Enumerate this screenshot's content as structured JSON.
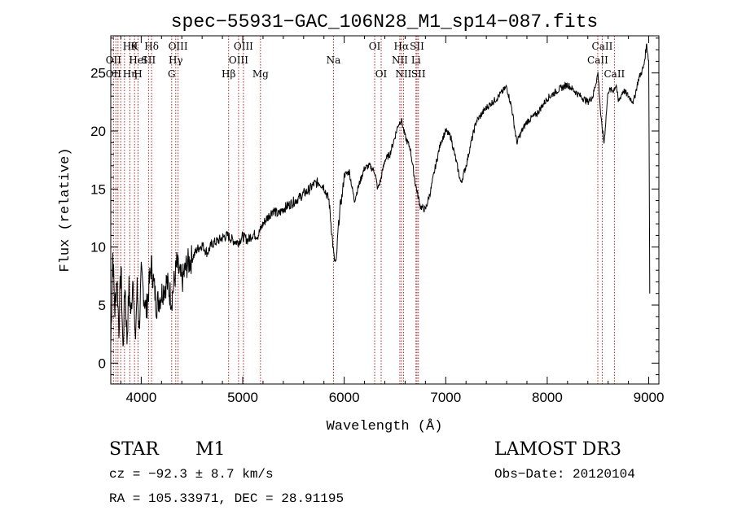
{
  "chart_data": {
    "type": "line",
    "title": "spec−55931−GAC_106N28_M1_sp14−087.fits",
    "xlabel": "Wavelength (Å)",
    "ylabel": "Flux (relative)",
    "xlim": [
      3700,
      9100
    ],
    "ylim": [
      -1.8,
      28.2
    ],
    "xticks": [
      4000,
      5000,
      6000,
      7000,
      8000,
      9000
    ],
    "yticks": [
      0,
      5,
      10,
      15,
      20,
      25
    ],
    "grid": false,
    "spectrum_color": "#000000",
    "line_marker_color": "#b22222",
    "series": [
      {
        "name": "flux",
        "x": [
          3700,
          3720,
          3740,
          3760,
          3780,
          3800,
          3820,
          3840,
          3860,
          3880,
          3900,
          3920,
          3940,
          3960,
          3980,
          4000,
          4050,
          4100,
          4150,
          4200,
          4250,
          4300,
          4350,
          4400,
          4450,
          4500,
          4550,
          4600,
          4650,
          4700,
          4750,
          4800,
          4850,
          4900,
          4950,
          5000,
          5050,
          5100,
          5150,
          5200,
          5250,
          5300,
          5350,
          5400,
          5450,
          5500,
          5550,
          5600,
          5650,
          5700,
          5750,
          5800,
          5850,
          5880,
          5900,
          5920,
          5940,
          5960,
          5980,
          6000,
          6050,
          6100,
          6150,
          6200,
          6250,
          6300,
          6330,
          6360,
          6400,
          6450,
          6500,
          6530,
          6563,
          6600,
          6650,
          6700,
          6750,
          6800,
          6850,
          6900,
          6950,
          7000,
          7050,
          7100,
          7150,
          7200,
          7250,
          7300,
          7400,
          7500,
          7600,
          7650,
          7700,
          7750,
          7800,
          7900,
          8000,
          8100,
          8200,
          8300,
          8400,
          8450,
          8500,
          8530,
          8560,
          8600,
          8650,
          8680,
          8700,
          8750,
          8800,
          8850,
          8900,
          8950,
          8980,
          9000,
          9010
        ],
        "values": [
          1.5,
          9.5,
          4.5,
          7.5,
          3.0,
          8.5,
          1.0,
          7.0,
          2.0,
          6.5,
          4.0,
          8.0,
          1.5,
          6.5,
          3.0,
          7.5,
          4.5,
          8.5,
          5.0,
          6.0,
          7.0,
          5.5,
          8.5,
          7.0,
          8.5,
          9.0,
          9.8,
          10.2,
          9.5,
          10.3,
          10.5,
          10.8,
          11.0,
          10.6,
          10.4,
          10.9,
          10.6,
          11.1,
          11.0,
          12.0,
          12.6,
          13.2,
          12.8,
          13.3,
          13.6,
          13.9,
          14.2,
          14.6,
          14.9,
          15.4,
          15.6,
          15.2,
          14.0,
          11.0,
          9.0,
          8.5,
          11.5,
          13.5,
          14.5,
          16.2,
          16.5,
          14.0,
          15.5,
          16.8,
          17.0,
          16.5,
          15.0,
          15.8,
          17.5,
          18.0,
          19.5,
          20.5,
          21.0,
          19.5,
          18.5,
          15.5,
          13.5,
          13.2,
          14.8,
          17.0,
          19.0,
          20.0,
          19.5,
          17.5,
          15.5,
          17.0,
          19.0,
          20.8,
          22.0,
          22.8,
          23.8,
          22.0,
          19.0,
          20.0,
          20.8,
          21.5,
          22.8,
          23.5,
          24.0,
          23.2,
          22.5,
          23.0,
          25.0,
          21.0,
          19.0,
          23.5,
          23.5,
          24.0,
          22.5,
          23.5,
          23.0,
          22.5,
          24.5,
          25.5,
          27.5,
          26.0,
          6.0
        ]
      }
    ],
    "line_markers": [
      {
        "wave": 3727,
        "top": "",
        "mid": "OII",
        "bot": "OII"
      },
      {
        "wave": 3750,
        "top": "",
        "mid": "",
        "bot": ""
      },
      {
        "wave": 3771,
        "top": "",
        "mid": "",
        "bot": ""
      },
      {
        "wave": 3798,
        "top": "",
        "mid": "",
        "bot": ""
      },
      {
        "wave": 3835,
        "top": "",
        "mid": "",
        "bot": ""
      },
      {
        "wave": 3889,
        "top": "Hθ",
        "mid": "",
        "bot": "Hη"
      },
      {
        "wave": 3934,
        "top": "K",
        "mid": "",
        "bot": ""
      },
      {
        "wave": 3969,
        "top": "",
        "mid": "HeI",
        "bot": "H"
      },
      {
        "wave": 4072,
        "top": "",
        "mid": "SII",
        "bot": ""
      },
      {
        "wave": 4102,
        "top": "Hδ",
        "mid": "",
        "bot": ""
      },
      {
        "wave": 4300,
        "top": "",
        "mid": "",
        "bot": "G"
      },
      {
        "wave": 4340,
        "top": "",
        "mid": "Hγ",
        "bot": ""
      },
      {
        "wave": 4363,
        "top": "OIII",
        "mid": "",
        "bot": ""
      },
      {
        "wave": 4861,
        "top": "",
        "mid": "",
        "bot": "Hβ"
      },
      {
        "wave": 4959,
        "top": "",
        "mid": "OIII",
        "bot": ""
      },
      {
        "wave": 5007,
        "top": "OIII",
        "mid": "",
        "bot": ""
      },
      {
        "wave": 5175,
        "top": "",
        "mid": "",
        "bot": "Mg"
      },
      {
        "wave": 5894,
        "top": "",
        "mid": "Na",
        "bot": ""
      },
      {
        "wave": 6300,
        "top": "OI",
        "mid": "",
        "bot": ""
      },
      {
        "wave": 6364,
        "top": "",
        "mid": "",
        "bot": "OI"
      },
      {
        "wave": 6548,
        "top": "",
        "mid": "NII",
        "bot": ""
      },
      {
        "wave": 6563,
        "top": "Hα",
        "mid": "",
        "bot": ""
      },
      {
        "wave": 6584,
        "top": "",
        "mid": "",
        "bot": "NII"
      },
      {
        "wave": 6707,
        "top": "",
        "mid": "Li",
        "bot": ""
      },
      {
        "wave": 6717,
        "top": "SII",
        "mid": "",
        "bot": ""
      },
      {
        "wave": 6731,
        "top": "",
        "mid": "",
        "bot": "SII"
      },
      {
        "wave": 8498,
        "top": "",
        "mid": "CaII",
        "bot": ""
      },
      {
        "wave": 8542,
        "top": "CaII",
        "mid": "",
        "bot": ""
      },
      {
        "wave": 8662,
        "top": "",
        "mid": "",
        "bot": "CaII"
      }
    ]
  },
  "info": {
    "object_class": "STAR",
    "subclass": "M1",
    "survey": "LAMOST DR3",
    "velocity": "cz = −92.3 ± 8.7 km/s",
    "obs_date": "Obs−Date: 20120104",
    "coords": "RA = 105.33971, DEC =  28.91195"
  }
}
